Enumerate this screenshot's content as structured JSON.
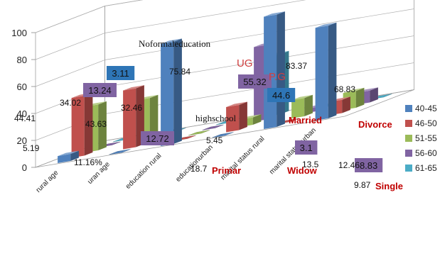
{
  "chart_data": {
    "type": "bar",
    "categories": [
      "rural age",
      "uran age",
      "education rural",
      "educationurban",
      "marital status rural",
      "marital status urban"
    ],
    "series": [
      {
        "name": "40-45",
        "color": "#4f81bd",
        "values": [
          5.19,
          0,
          75.84,
          0,
          83.37,
          68.83
        ]
      },
      {
        "name": "46-50",
        "color": "#c0504d",
        "values": [
          44.41,
          43.63,
          0,
          18.7,
          0,
          9.87
        ]
      },
      {
        "name": "51-55",
        "color": "#9bbb59",
        "values": [
          34.02,
          32.46,
          0,
          5.45,
          13.5,
          12.46
        ]
      },
      {
        "name": "56-60",
        "color": "#8064a2",
        "values": [
          0,
          0,
          0,
          55.32,
          3.1,
          8.83
        ]
      },
      {
        "name": "61-65",
        "color": "#4bacc6",
        "values": [
          0,
          0,
          0,
          44.6,
          0,
          0
        ]
      }
    ],
    "yticks": [
      "0",
      "20",
      "40",
      "60",
      "80",
      "100"
    ],
    "ylim": [
      0,
      100
    ],
    "legend": "right",
    "grid": true,
    "data_labels": [
      {
        "text": "5.19"
      },
      {
        "text": "44.41"
      },
      {
        "text": "34.02"
      },
      {
        "text": "13.24"
      },
      {
        "text": "3.11"
      },
      {
        "text": "11.16%"
      },
      {
        "text": "43.63"
      },
      {
        "text": "32.46"
      },
      {
        "text": "12.72"
      },
      {
        "text": "75.84"
      },
      {
        "text": "18.7"
      },
      {
        "text": "5.45"
      },
      {
        "text": "55.32"
      },
      {
        "text": "44.6"
      },
      {
        "text": "83.37"
      },
      {
        "text": "3.1"
      },
      {
        "text": "13.5"
      },
      {
        "text": "68.83"
      },
      {
        "text": "8.83"
      },
      {
        "text": "12.46"
      },
      {
        "text": "9.87"
      }
    ],
    "annotations": [
      {
        "text": "Noformaleducation"
      },
      {
        "text": "highschool"
      },
      {
        "text": "Primar"
      },
      {
        "text": "UG"
      },
      {
        "text": "P.G"
      },
      {
        "text": "Married"
      },
      {
        "text": "Widow"
      },
      {
        "text": "Divorce"
      },
      {
        "text": "Single"
      }
    ]
  }
}
